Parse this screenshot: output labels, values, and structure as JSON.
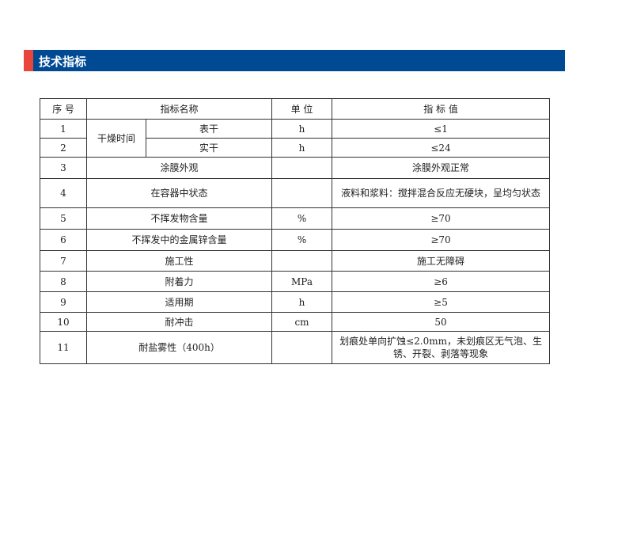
{
  "section_title": "技术指标",
  "colors": {
    "header_bar": "#004a93",
    "accent": "#e8453c"
  },
  "table": {
    "headers": {
      "no": "序 号",
      "name": "指标名称",
      "unit": "单 位",
      "value": "指 标 值"
    },
    "drying_group": "干燥时间",
    "rows": [
      {
        "no": "1",
        "name": "表干",
        "unit": "h",
        "value": "≤1"
      },
      {
        "no": "2",
        "name": "实干",
        "unit": "h",
        "value": "≤24"
      },
      {
        "no": "3",
        "name": "涂膜外观",
        "unit": "",
        "value": "涂膜外观正常"
      },
      {
        "no": "4",
        "name": "在容器中状态",
        "unit": "",
        "value": "液料和浆料：搅拌混合反应无硬块，呈均匀状态"
      },
      {
        "no": "5",
        "name": "不挥发物含量",
        "unit": "%",
        "value": "≥70"
      },
      {
        "no": "6",
        "name": "不挥发中的金属锌含量",
        "unit": "%",
        "value": "≥70"
      },
      {
        "no": "7",
        "name": "施工性",
        "unit": "",
        "value": "施工无障碍"
      },
      {
        "no": "8",
        "name": "附着力",
        "unit": "MPa",
        "value": "≥6"
      },
      {
        "no": "9",
        "name": "适用期",
        "unit": "h",
        "value": "≥5"
      },
      {
        "no": "10",
        "name": "耐冲击",
        "unit": "cm",
        "value": "50"
      },
      {
        "no": "11",
        "name": "耐盐雾性（400h）",
        "unit": "",
        "value": "划痕处单向扩蚀≤2.0mm，未划痕区无气泡、生锈、开裂、剥落等现象"
      }
    ]
  }
}
